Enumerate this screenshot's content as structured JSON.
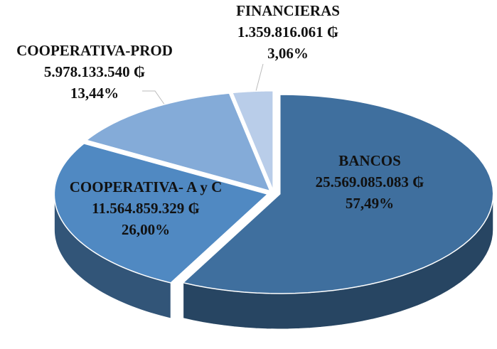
{
  "chart_data": {
    "type": "pie",
    "three_d": true,
    "categories": [
      "BANCOS",
      "COOPERATIVA- A y C",
      "COOPERATIVA-PROD",
      "FINANCIERAS"
    ],
    "amounts": [
      "25.569.085.083 ₲",
      "11.564.859.329 ₲",
      "5.978.133.540 ₲",
      "1.359.816.061 ₲"
    ],
    "values": [
      57.49,
      26.0,
      13.44,
      3.06
    ],
    "value_labels": [
      "57,49%",
      "26,00%",
      "13,44%",
      "3,06%"
    ],
    "colors": [
      "#3f6f9e",
      "#5089c2",
      "#84abd8",
      "#b9cde9"
    ]
  }
}
